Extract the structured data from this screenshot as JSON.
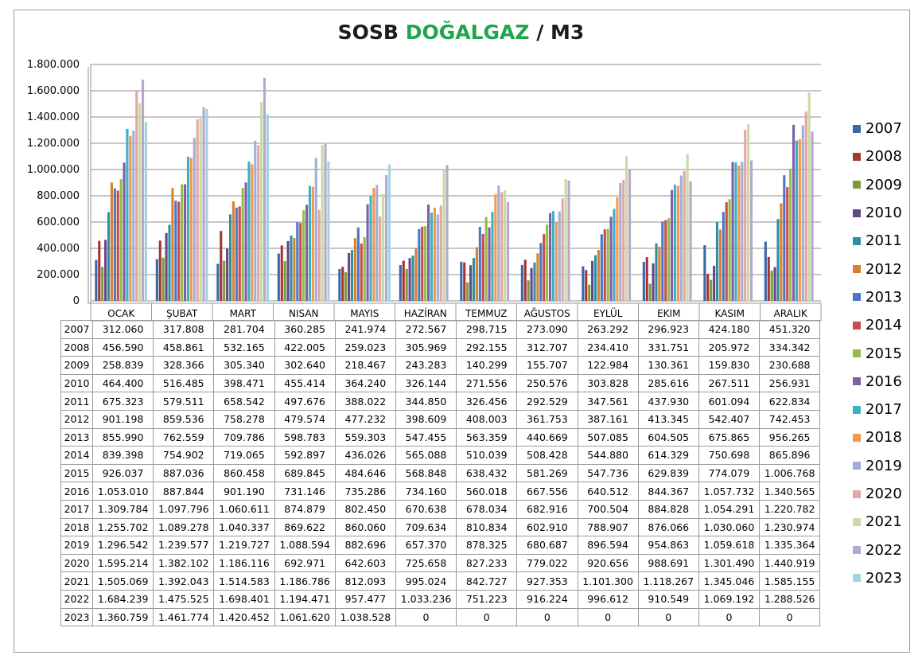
{
  "title": {
    "part1": "SOSB ",
    "part2": "DOĞALGAZ",
    "part3": " / M3"
  },
  "colors": {
    "title_green": "#1fa64a",
    "series": [
      "#3a68a8",
      "#a33633",
      "#7d9a3a",
      "#654785",
      "#2f8fa4",
      "#d8822e",
      "#4877c6",
      "#c94c4a",
      "#95bb48",
      "#7e5fa8",
      "#3cb0c9",
      "#f5984a",
      "#9fb0d8",
      "#e5a5a3",
      "#c7dba2",
      "#b6a8cc",
      "#a5d2e0"
    ]
  },
  "chart_data": {
    "type": "bar",
    "title": "SOSB DOĞALGAZ / M3",
    "categories": [
      "OCAK",
      "ŞUBAT",
      "MART",
      "NISAN",
      "MAYIS",
      "HAZİRAN",
      "TEMMUZ",
      "AĞUSTOS",
      "EYLÜL",
      "EKIM",
      "KASIM",
      "ARALIK"
    ],
    "ylim": [
      0,
      1800000
    ],
    "yticks": [
      0,
      200000,
      400000,
      600000,
      800000,
      1000000,
      1200000,
      1400000,
      1600000,
      1800000
    ],
    "ytick_labels": [
      "0",
      "200.000",
      "400.000",
      "600.000",
      "800.000",
      "1.000.000",
      "1.200.000",
      "1.400.000",
      "1.600.000",
      "1.800.000"
    ],
    "grid": true,
    "legend_position": "right",
    "series": [
      {
        "name": "2007",
        "values": [
          312060,
          317808,
          281704,
          360285,
          241974,
          272567,
          298715,
          273090,
          263292,
          296923,
          424180,
          451320
        ],
        "labels": [
          "312.060",
          "317.808",
          "281.704",
          "360.285",
          "241.974",
          "272.567",
          "298.715",
          "273.090",
          "263.292",
          "296.923",
          "424.180",
          "451.320"
        ]
      },
      {
        "name": "2008",
        "values": [
          456590,
          458861,
          532165,
          422005,
          259023,
          305969,
          292155,
          312707,
          234410,
          331751,
          205972,
          334342
        ],
        "labels": [
          "456.590",
          "458.861",
          "532.165",
          "422.005",
          "259.023",
          "305.969",
          "292.155",
          "312.707",
          "234.410",
          "331.751",
          "205.972",
          "334.342"
        ]
      },
      {
        "name": "2009",
        "values": [
          258839,
          328366,
          305340,
          302640,
          218467,
          243283,
          140299,
          155707,
          122984,
          130361,
          159830,
          230688
        ],
        "labels": [
          "258.839",
          "328.366",
          "305.340",
          "302.640",
          "218.467",
          "243.283",
          "140.299",
          "155.707",
          "122.984",
          "130.361",
          "159.830",
          "230.688"
        ]
      },
      {
        "name": "2010",
        "values": [
          464400,
          516485,
          398471,
          455414,
          364240,
          326144,
          271556,
          250576,
          303828,
          285616,
          267511,
          256931
        ],
        "labels": [
          "464.400",
          "516.485",
          "398.471",
          "455.414",
          "364.240",
          "326.144",
          "271.556",
          "250.576",
          "303.828",
          "285.616",
          "267.511",
          "256.931"
        ]
      },
      {
        "name": "2011",
        "values": [
          675323,
          579511,
          658542,
          497676,
          388022,
          344850,
          326456,
          292529,
          347561,
          437930,
          601094,
          622834
        ],
        "labels": [
          "675.323",
          "579.511",
          "658.542",
          "497.676",
          "388.022",
          "344.850",
          "326.456",
          "292.529",
          "347.561",
          "437.930",
          "601.094",
          "622.834"
        ]
      },
      {
        "name": "2012",
        "values": [
          901198,
          859536,
          758278,
          479574,
          477232,
          398609,
          408003,
          361753,
          387161,
          413345,
          542407,
          742453
        ],
        "labels": [
          "901.198",
          "859.536",
          "758.278",
          "479.574",
          "477.232",
          "398.609",
          "408.003",
          "361.753",
          "387.161",
          "413.345",
          "542.407",
          "742.453"
        ]
      },
      {
        "name": "2013",
        "values": [
          855990,
          762559,
          709786,
          598783,
          559303,
          547455,
          563359,
          440669,
          507085,
          604505,
          675865,
          956265
        ],
        "labels": [
          "855.990",
          "762.559",
          "709.786",
          "598.783",
          "559.303",
          "547.455",
          "563.359",
          "440.669",
          "507.085",
          "604.505",
          "675.865",
          "956.265"
        ]
      },
      {
        "name": "2014",
        "values": [
          839398,
          754902,
          719065,
          592897,
          436026,
          565088,
          510039,
          508428,
          544880,
          614329,
          750698,
          865896
        ],
        "labels": [
          "839.398",
          "754.902",
          "719.065",
          "592.897",
          "436.026",
          "565.088",
          "510.039",
          "508.428",
          "544.880",
          "614.329",
          "750.698",
          "865.896"
        ]
      },
      {
        "name": "2015",
        "values": [
          926037,
          887036,
          860458,
          689845,
          484646,
          568848,
          638432,
          581269,
          547736,
          629839,
          774079,
          1006768
        ],
        "labels": [
          "926.037",
          "887.036",
          "860.458",
          "689.845",
          "484.646",
          "568.848",
          "638.432",
          "581.269",
          "547.736",
          "629.839",
          "774.079",
          "1.006.768"
        ]
      },
      {
        "name": "2016",
        "values": [
          1053010,
          887844,
          901190,
          731146,
          735286,
          734160,
          560018,
          667556,
          640512,
          844367,
          1057732,
          1340565
        ],
        "labels": [
          "1.053.010",
          "887.844",
          "901.190",
          "731.146",
          "735.286",
          "734.160",
          "560.018",
          "667.556",
          "640.512",
          "844.367",
          "1.057.732",
          "1.340.565"
        ]
      },
      {
        "name": "2017",
        "values": [
          1309784,
          1097796,
          1060611,
          874879,
          802450,
          670638,
          678034,
          682916,
          700504,
          884828,
          1054291,
          1220782
        ],
        "labels": [
          "1.309.784",
          "1.097.796",
          "1.060.611",
          "874.879",
          "802.450",
          "670.638",
          "678.034",
          "682.916",
          "700.504",
          "884.828",
          "1.054.291",
          "1.220.782"
        ]
      },
      {
        "name": "2018",
        "values": [
          1255702,
          1089278,
          1040337,
          869622,
          860060,
          709634,
          810834,
          602910,
          788907,
          876066,
          1030060,
          1230974
        ],
        "labels": [
          "1.255.702",
          "1.089.278",
          "1.040.337",
          "869.622",
          "860.060",
          "709.634",
          "810.834",
          "602.910",
          "788.907",
          "876.066",
          "1.030.060",
          "1.230.974"
        ]
      },
      {
        "name": "2019",
        "values": [
          1296542,
          1239577,
          1219727,
          1088594,
          882696,
          657370,
          878325,
          680687,
          896594,
          954863,
          1059618,
          1335364
        ],
        "labels": [
          "1.296.542",
          "1.239.577",
          "1.219.727",
          "1.088.594",
          "882.696",
          "657.370",
          "878.325",
          "680.687",
          "896.594",
          "954.863",
          "1.059.618",
          "1.335.364"
        ]
      },
      {
        "name": "2020",
        "values": [
          1595214,
          1382102,
          1186116,
          692971,
          642603,
          725658,
          827233,
          779022,
          920656,
          988691,
          1301490,
          1440919
        ],
        "labels": [
          "1.595.214",
          "1.382.102",
          "1.186.116",
          "692.971",
          "642.603",
          "725.658",
          "827.233",
          "779.022",
          "920.656",
          "988.691",
          "1.301.490",
          "1.440.919"
        ]
      },
      {
        "name": "2021",
        "values": [
          1505069,
          1392043,
          1514583,
          1186786,
          812093,
          995024,
          842727,
          927353,
          1101300,
          1118267,
          1345046,
          1585155
        ],
        "labels": [
          "1.505.069",
          "1.392.043",
          "1.514.583",
          "1.186.786",
          "812.093",
          "995.024",
          "842.727",
          "927.353",
          "1.101.300",
          "1.118.267",
          "1.345.046",
          "1.585.155"
        ]
      },
      {
        "name": "2022",
        "values": [
          1684239,
          1475525,
          1698401,
          1194471,
          957477,
          1033236,
          751223,
          916224,
          996612,
          910549,
          1069192,
          1288526
        ],
        "labels": [
          "1.684.239",
          "1.475.525",
          "1.698.401",
          "1.194.471",
          "957.477",
          "1.033.236",
          "751.223",
          "916.224",
          "996.612",
          "910.549",
          "1.069.192",
          "1.288.526"
        ]
      },
      {
        "name": "2023",
        "values": [
          1360759,
          1461774,
          1420452,
          1061620,
          1038528,
          0,
          0,
          0,
          0,
          0,
          0,
          0
        ],
        "labels": [
          "1.360.759",
          "1.461.774",
          "1.420.452",
          "1.061.620",
          "1.038.528",
          "0",
          "0",
          "0",
          "0",
          "0",
          "0",
          "0"
        ]
      }
    ]
  }
}
